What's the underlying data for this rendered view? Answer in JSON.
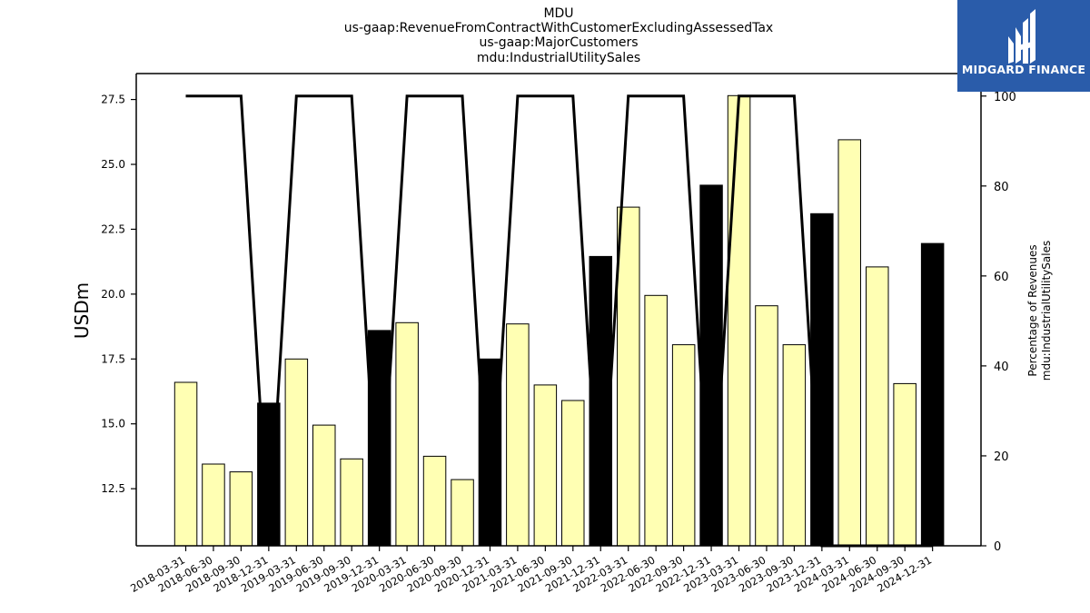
{
  "title_lines": [
    "MDU",
    "us-gaap:RevenueFromContractWithCustomerExcludingAssessedTax",
    "us-gaap:MajorCustomers",
    "mdu:IndustrialUtilitySales"
  ],
  "logo": {
    "text": "MIDGARD FINANCE",
    "color": "#2a5caa"
  },
  "chart_data": {
    "type": "bar",
    "categories": [
      "2018-03-31",
      "2018-06-30",
      "2018-09-30",
      "2018-12-31",
      "2019-03-31",
      "2019-06-30",
      "2019-09-30",
      "2019-12-31",
      "2020-03-31",
      "2020-06-30",
      "2020-09-30",
      "2020-12-31",
      "2021-03-31",
      "2021-06-30",
      "2021-09-30",
      "2021-12-31",
      "2022-03-31",
      "2022-06-30",
      "2022-09-30",
      "2022-12-31",
      "2023-03-31",
      "2023-06-30",
      "2023-09-30",
      "2023-12-31",
      "2024-03-31",
      "2024-06-30",
      "2024-09-30",
      "2024-12-31"
    ],
    "values": [
      16.6,
      13.45,
      13.15,
      15.8,
      17.5,
      14.95,
      13.65,
      18.6,
      18.9,
      13.75,
      12.85,
      17.5,
      18.85,
      16.5,
      15.9,
      21.45,
      23.35,
      19.95,
      18.05,
      24.2,
      27.65,
      19.55,
      18.05,
      23.1,
      25.95,
      21.05,
      16.55,
      21.95
    ],
    "bar_colors": {
      "quarter": "#ffffb3",
      "year_end": "#000000"
    },
    "percentage_line": [
      100,
      100,
      100,
      0,
      100,
      100,
      100,
      0,
      100,
      100,
      100,
      0,
      100,
      100,
      100,
      0,
      100,
      100,
      100,
      0,
      100,
      100,
      100,
      0,
      0,
      0,
      0,
      0
    ],
    "ylabel": "USDm",
    "y2label_lines": [
      "Percentage of Revenues",
      "mdu:IndustrialUtilitySales"
    ],
    "ylim": [
      10.3,
      28.5
    ],
    "y2lim": [
      0,
      105
    ],
    "yticks": [
      "12.5",
      "15.0",
      "17.5",
      "20.0",
      "22.5",
      "25.0",
      "27.5"
    ],
    "y2ticks": [
      "0",
      "20",
      "40",
      "60",
      "80",
      "100"
    ]
  }
}
